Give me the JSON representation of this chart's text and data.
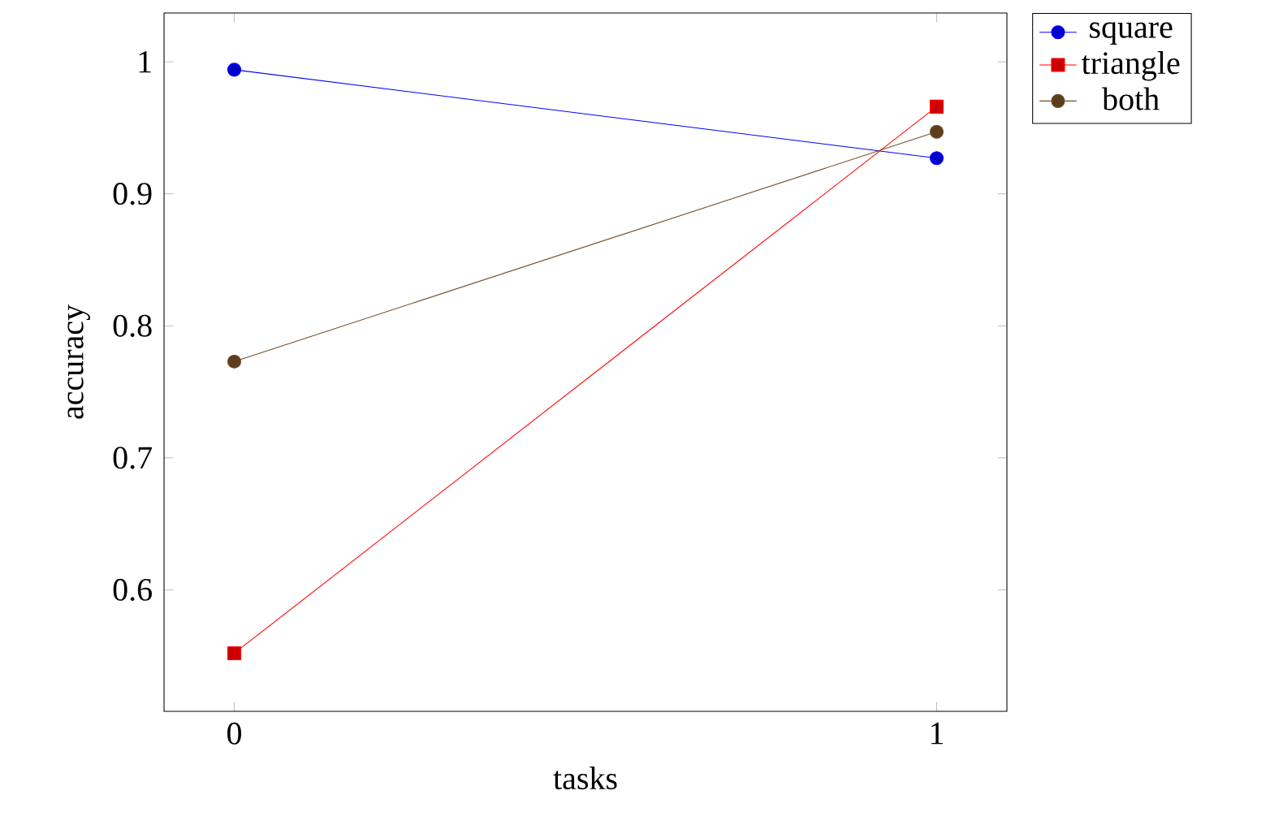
{
  "chart_data": {
    "type": "line",
    "xlabel": "tasks",
    "ylabel": "accuracy",
    "x": [
      0,
      1
    ],
    "xlim": [
      -0.1,
      1.1
    ],
    "ylim": [
      0.508,
      1.037
    ],
    "xticks": [
      0,
      1
    ],
    "yticks": [
      0.6,
      0.7,
      0.8,
      0.9,
      1
    ],
    "legend": "right",
    "line_style": "solid",
    "series": [
      {
        "name": "square",
        "color": "#0000ff",
        "marker": "circle",
        "values": [
          0.994,
          0.927
        ]
      },
      {
        "name": "triangle",
        "color": "#ff0000",
        "marker": "square",
        "values": [
          0.552,
          0.966
        ]
      },
      {
        "name": "both",
        "color": "#734d26",
        "marker": "circle",
        "values": [
          0.773,
          0.947
        ]
      }
    ]
  }
}
